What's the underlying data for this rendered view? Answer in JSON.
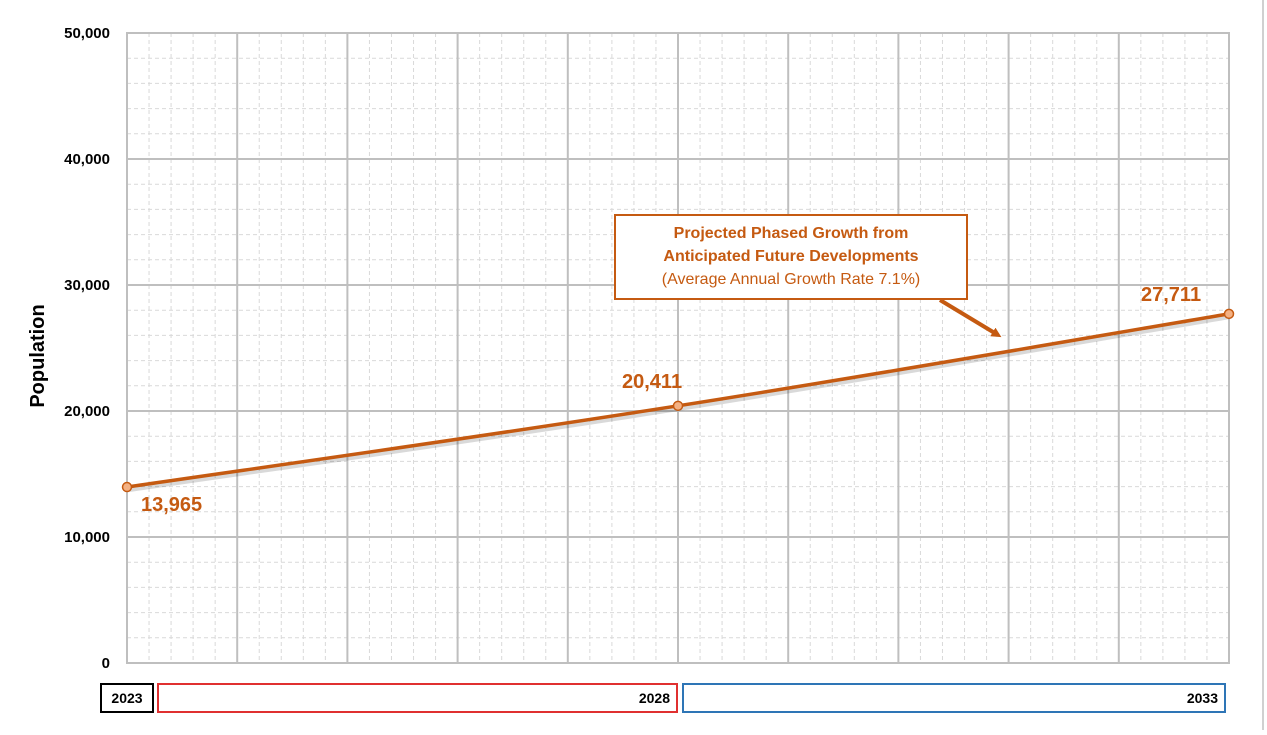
{
  "chart_data": {
    "type": "line",
    "title": "",
    "xlabel": "",
    "ylabel": "Population",
    "ylim": [
      0,
      50000
    ],
    "yticks": [
      "0",
      "10,000",
      "20,000",
      "30,000",
      "40,000",
      "50,000"
    ],
    "xlim": [
      2023,
      2033
    ],
    "grid": true,
    "series": [
      {
        "color": "#c55a11",
        "points": [
          {
            "x": 2023,
            "y": 13965,
            "label": "13,965"
          },
          {
            "x": 2028,
            "y": 20411,
            "label": "20,411"
          },
          {
            "x": 2033,
            "y": 27711,
            "label": "27,711"
          }
        ]
      }
    ],
    "annotation": {
      "line1": "Projected Phased Growth from",
      "line2": "Anticipated Future Developments",
      "line3": "(Average Annual Growth Rate 7.1%)"
    },
    "timeline": [
      {
        "label": "2023",
        "border": "#000000"
      },
      {
        "label": "2028",
        "border": "#e03030"
      },
      {
        "label": "2033",
        "border": "#2e75b6"
      }
    ]
  }
}
